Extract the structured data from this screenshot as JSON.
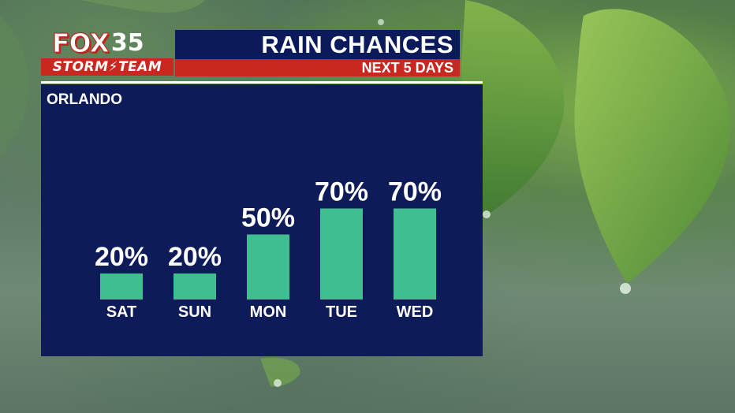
{
  "header": {
    "logo_fox": "FOX",
    "logo_number": "35",
    "logo_team": "STORM⚡TEAM",
    "title": "RAIN CHANCES",
    "subtitle": "NEXT 5 DAYS"
  },
  "location": "ORLANDO",
  "colors": {
    "panel": "#0d1b58",
    "bar": "#3fbf8f",
    "header_blue": "#0a1a5a",
    "header_red": "#c8281f",
    "text": "#ffffff"
  },
  "chart_data": {
    "type": "bar",
    "title": "RAIN CHANCES",
    "subtitle": "NEXT 5 DAYS",
    "categories": [
      "SAT",
      "SUN",
      "MON",
      "TUE",
      "WED"
    ],
    "values": [
      20,
      20,
      50,
      70,
      70
    ],
    "value_labels": [
      "20%",
      "20%",
      "50%",
      "70%",
      "70%"
    ],
    "unit": "%",
    "ylim": [
      0,
      100
    ],
    "grid": false,
    "legend": "none"
  }
}
